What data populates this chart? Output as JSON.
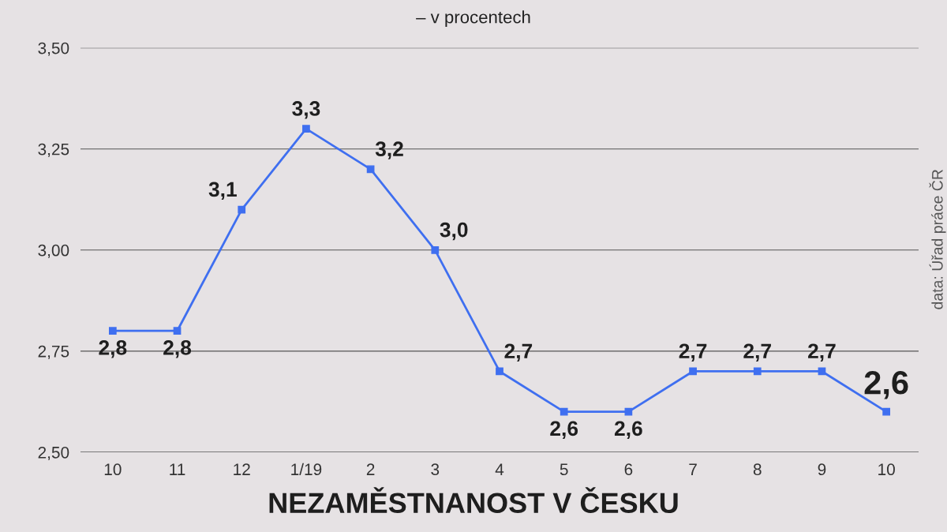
{
  "chart_data": {
    "type": "line",
    "title": "NEZAMĚSTNANOST V ČESKU",
    "subtitle": "– v procentech",
    "annotations": [
      "data: Úřad práce ČR"
    ],
    "categories": [
      "10",
      "11",
      "12",
      "1/19",
      "2",
      "3",
      "4",
      "5",
      "6",
      "7",
      "8",
      "9",
      "10"
    ],
    "series": [
      {
        "color": "#3f6ff0",
        "values": [
          2.8,
          2.8,
          3.1,
          3.3,
          3.2,
          3.0,
          2.7,
          2.6,
          2.6,
          2.7,
          2.7,
          2.7,
          2.6
        ],
        "value_labels": [
          "2,8",
          "2,8",
          "3,1",
          "3,3",
          "3,2",
          "3,0",
          "2,7",
          "2,6",
          "2,6",
          "2,7",
          "2,7",
          "2,7",
          "2,6"
        ]
      }
    ],
    "ylim": [
      2.5,
      3.5
    ],
    "yticks": [
      {
        "value": 2.5,
        "label": "2,50"
      },
      {
        "value": 2.75,
        "label": "2,75"
      },
      {
        "value": 3.0,
        "label": "3,00"
      },
      {
        "value": 3.25,
        "label": "3,25"
      },
      {
        "value": 3.5,
        "label": "3,50"
      }
    ],
    "grid": "y",
    "legend": false,
    "marker": "square",
    "line_style": "solid"
  }
}
